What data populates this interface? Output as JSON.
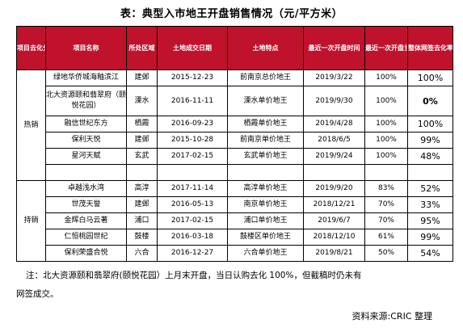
{
  "title": "表：典型入市地王开盘销售情况（元/平方米）",
  "headers": [
    "项目去化分类",
    "项目名称",
    "所处区域",
    "土地成交日期",
    "土地特点",
    "最近一次开盘时间",
    "最近一次开盘当日认购去化率",
    "整体网签去化率"
  ],
  "groups": [
    {
      "category": "热销",
      "rows": [
        {
          "name": "绿地华侨城海釉滨江",
          "district": "建邺",
          "land_date": "2015-12-23",
          "feature": "前南京总价地王",
          "open_date": "2019/3/22",
          "first_rate": "100%",
          "overall_rate": "100%"
        },
        {
          "name": "北大资源颐和翡翠府（颐悦花园）",
          "district": "溧水",
          "land_date": "2016-11-11",
          "feature": "溧水单价地王",
          "open_date": "2019/9/30",
          "first_rate": "100%",
          "overall_rate": "0%"
        },
        {
          "name": "融信世纪东方",
          "district": "栖霞",
          "land_date": "2016-09-23",
          "feature": "栖霞单价地王",
          "open_date": "2019/4/28",
          "first_rate": "100%",
          "overall_rate": "100%"
        },
        {
          "name": "保利天悦",
          "district": "建邺",
          "land_date": "2015-10-28",
          "feature": "前南京单价地王",
          "open_date": "2018/6/5",
          "first_rate": "100%",
          "overall_rate": "99%"
        },
        {
          "name": "星河天赋",
          "district": "玄武",
          "land_date": "2017-02-15",
          "feature": "玄武单价地王",
          "open_date": "2019/9/24",
          "first_rate": "100%",
          "overall_rate": "48%"
        }
      ]
    },
    {
      "category": "持销",
      "rows": [
        {
          "name": "卓越浅水湾",
          "district": "高淳",
          "land_date": "2017-11-14",
          "feature": "高淳单价地王",
          "open_date": "2019/9/20",
          "first_rate": "83%",
          "overall_rate": "52%"
        },
        {
          "name": "世茂天誉",
          "district": "建邺",
          "land_date": "2016-05-13",
          "feature": "南京单价地王",
          "open_date": "2018/12/21",
          "first_rate": "70%",
          "overall_rate": "33%"
        },
        {
          "name": "金辉白马云著",
          "district": "浦口",
          "land_date": "2017-02-15",
          "feature": "浦口单价地王",
          "open_date": "2019/6/7",
          "first_rate": "70%",
          "overall_rate": "95%"
        },
        {
          "name": "仁恒桃园世纪",
          "district": "鼓楼",
          "land_date": "2016-03-18",
          "feature": "鼓楼区单价地王",
          "open_date": "2018/12/10",
          "first_rate": "61%",
          "overall_rate": "99%"
        },
        {
          "name": "保利荣盛合悦",
          "district": "六合",
          "land_date": "2016-12-27",
          "feature": "六合单价地王",
          "open_date": "2019/8/21",
          "first_rate": "50%",
          "overall_rate": "54%"
        }
      ]
    }
  ],
  "note_line1": "注：北大资源颐和翡翠府(颐悦花园）上月末开盘，当日认购去化 100%，但截稿时仍未有",
  "note_line2": "网签成交。",
  "source": "资料来源:CRIC 整理",
  "colors": {
    "header_bg": "#c0122c",
    "header_text": "#ffffff"
  }
}
